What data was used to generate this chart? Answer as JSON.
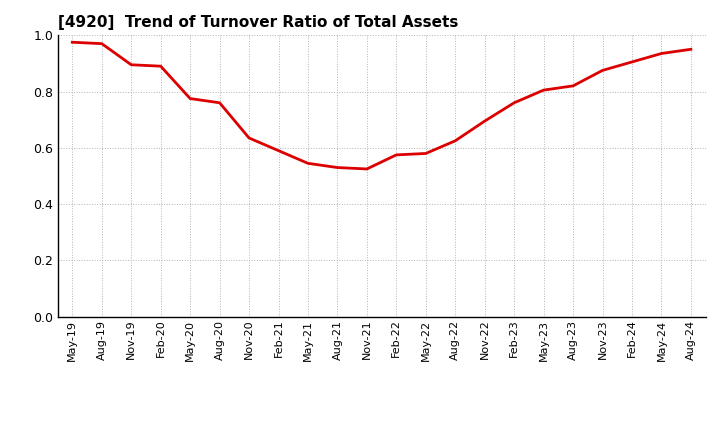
{
  "title": "[4920]  Trend of Turnover Ratio of Total Assets",
  "line_color": "#dd0000",
  "line_width": 2.0,
  "background_color": "#ffffff",
  "plot_bg_color": "#ffffff",
  "grid_color": "#aaaaaa",
  "ylim": [
    0.0,
    1.0
  ],
  "yticks": [
    0.0,
    0.2,
    0.4,
    0.6,
    0.8,
    1.0
  ],
  "x_labels": [
    "May-19",
    "Aug-19",
    "Nov-19",
    "Feb-20",
    "May-20",
    "Aug-20",
    "Nov-20",
    "Feb-21",
    "May-21",
    "Aug-21",
    "Nov-21",
    "Feb-22",
    "May-22",
    "Aug-22",
    "Nov-22",
    "Feb-23",
    "May-23",
    "Aug-23",
    "Nov-23",
    "Feb-24",
    "May-24",
    "Aug-24"
  ],
  "values": [
    0.975,
    0.97,
    0.895,
    0.89,
    0.775,
    0.76,
    0.635,
    0.59,
    0.545,
    0.53,
    0.525,
    0.575,
    0.58,
    0.625,
    0.695,
    0.76,
    0.805,
    0.82,
    0.875,
    0.905,
    0.935,
    0.95
  ],
  "title_fontsize": 11,
  "tick_label_fontsize": 8,
  "ytick_label_fontsize": 9
}
